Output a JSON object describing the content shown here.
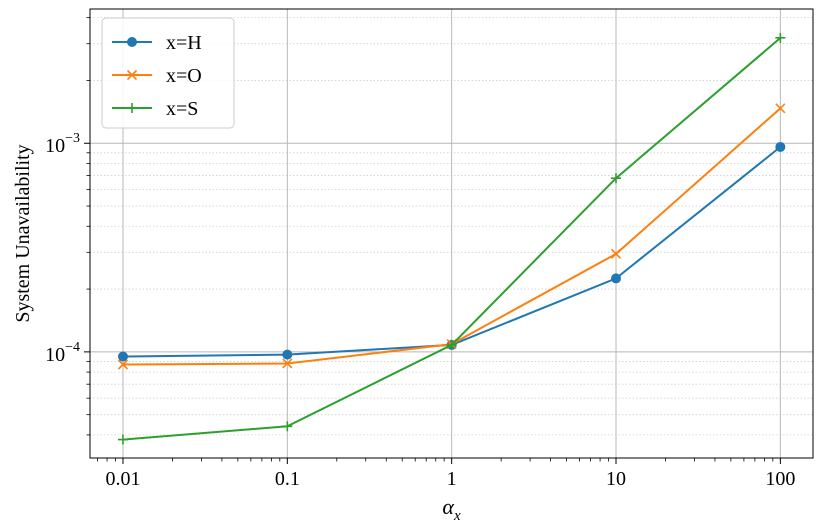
{
  "chart_data": {
    "type": "line",
    "x_scale": "log",
    "y_scale": "log",
    "x": [
      0.01,
      0.1,
      1,
      10,
      100
    ],
    "xticks": [
      "0.01",
      "0.1",
      "1",
      "10",
      "100"
    ],
    "yticks": [
      {
        "value": 0.0001,
        "base": "10",
        "exp": "−4"
      },
      {
        "value": 0.001,
        "base": "10",
        "exp": "−3"
      }
    ],
    "xlim": [
      0.0063,
      158
    ],
    "ylim": [
      3.1e-05,
      0.0044
    ],
    "xlabel": {
      "symbol": "α",
      "subscript": "x"
    },
    "ylabel": "System Unavailability",
    "grid": "major solid, minor dotted on y",
    "legend_position": "top-left",
    "series": [
      {
        "name": "x=H",
        "color": "#1f77b4",
        "marker": "circle",
        "values": [
          9.5e-05,
          9.7e-05,
          0.000108,
          0.000225,
          0.00096
        ]
      },
      {
        "name": "x=O",
        "color": "#ff7f0e",
        "marker": "x",
        "values": [
          8.7e-05,
          8.8e-05,
          0.000109,
          0.000295,
          0.00147
        ]
      },
      {
        "name": "x=S",
        "color": "#2ca02c",
        "marker": "plus",
        "values": [
          3.8e-05,
          4.4e-05,
          0.000108,
          0.00068,
          0.0032
        ]
      }
    ]
  }
}
